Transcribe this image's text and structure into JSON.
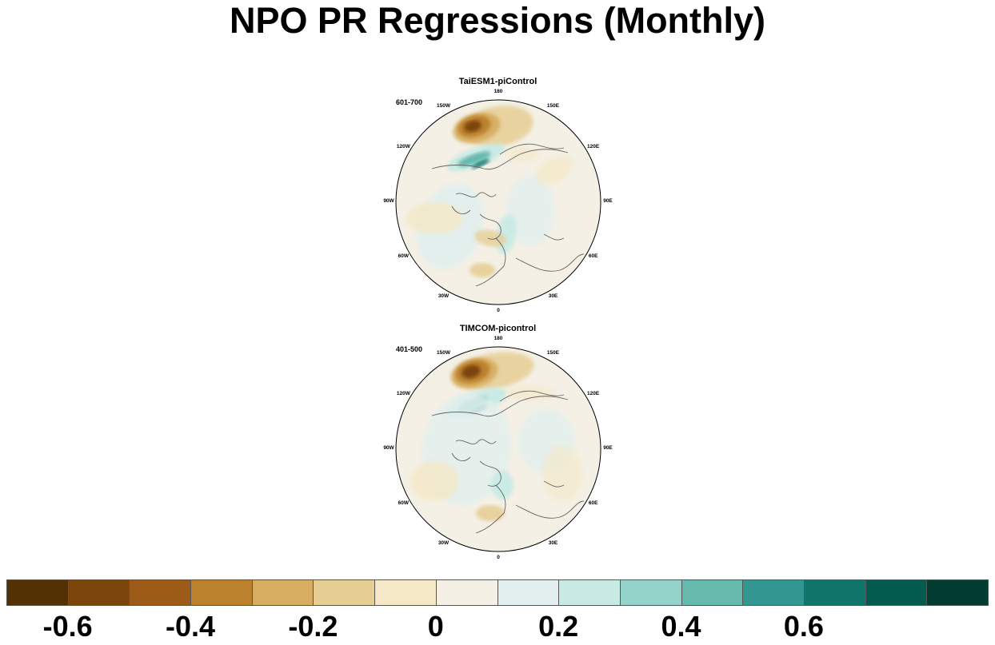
{
  "title": "NPO PR Regressions (Monthly)",
  "panels": [
    {
      "title": "TaiESM1-piControl",
      "subtitle": "601-700",
      "lon_labels": [
        "180",
        "150E",
        "120E",
        "90E",
        "60E",
        "30E",
        "0",
        "30W",
        "60W",
        "90W",
        "120W",
        "150W"
      ]
    },
    {
      "title": "TIMCOM-picontrol",
      "subtitle": "401-500",
      "lon_labels": [
        "180",
        "150E",
        "120E",
        "90E",
        "60E",
        "30E",
        "0",
        "30W",
        "60W",
        "90W",
        "120W",
        "150W"
      ]
    }
  ],
  "colorbar": {
    "colors": [
      "#543005",
      "#7b440b",
      "#9c5c17",
      "#bc812d",
      "#d7ad61",
      "#e6ce95",
      "#f4e8c7",
      "#f4f0e5",
      "#e2efee",
      "#c7eae5",
      "#93d3ca",
      "#66b9ad",
      "#319790",
      "#12756c",
      "#035b4f",
      "#003c30"
    ],
    "tick_labels": [
      "-0.6",
      "-0.4",
      "-0.2",
      "0",
      "0.2",
      "0.4",
      "0.6"
    ]
  },
  "chart_data": {
    "type": "heatmap",
    "title": "NPO PR Regressions (Monthly)",
    "projection": "north polar stereographic",
    "panels": [
      "TaiESM1-piControl",
      "TIMCOM-picontrol"
    ],
    "colorbar_levels": [
      -0.7,
      -0.6,
      -0.5,
      -0.4,
      -0.3,
      -0.2,
      -0.1,
      0,
      0.1,
      0.2,
      0.3,
      0.4,
      0.5,
      0.6,
      0.7
    ],
    "colorbar_ticks": [
      -0.6,
      -0.4,
      -0.2,
      0,
      0.2,
      0.4,
      0.6
    ]
  }
}
